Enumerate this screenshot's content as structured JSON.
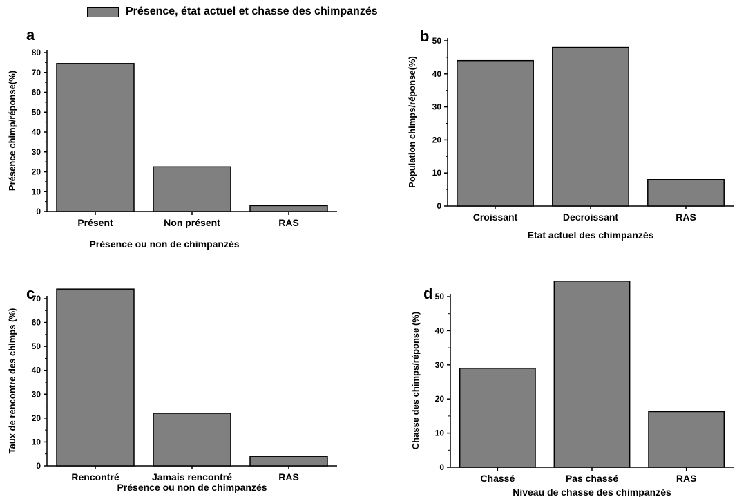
{
  "legend": {
    "label": "Présence, état actuel et chasse des chimpanzés",
    "color": "#808080"
  },
  "chart_data": [
    {
      "type": "bar",
      "panel": "a",
      "categories": [
        "Présent",
        "Non présent",
        "RAS"
      ],
      "values": [
        74.5,
        22.5,
        3
      ],
      "xlabel": "Présence ou non de chimpanzés",
      "ylabel": "Présence chimp/réponse(%)",
      "ylim": [
        0,
        80
      ],
      "yticks": [
        0,
        10,
        20,
        30,
        40,
        50,
        60,
        70,
        80
      ],
      "bar_color": "#808080",
      "grid": false
    },
    {
      "type": "bar",
      "panel": "b",
      "categories": [
        "Croissant",
        "Decroissant",
        "RAS"
      ],
      "values": [
        44,
        48,
        8
      ],
      "xlabel": "Etat actuel des chimpanzés",
      "ylabel": "Population chimps/réponse(%)",
      "ylim": [
        0,
        50
      ],
      "yticks": [
        0,
        10,
        20,
        30,
        40,
        50
      ],
      "bar_color": "#808080",
      "grid": false
    },
    {
      "type": "bar",
      "panel": "c",
      "categories": [
        "Rencontré",
        "Jamais rencontré",
        "RAS"
      ],
      "values": [
        74,
        22,
        4
      ],
      "xlabel": "Présence ou non de chimpanzés",
      "ylabel": "Taux de rencontre des chimps (%)",
      "ylim": [
        0,
        70
      ],
      "yticks": [
        0,
        10,
        20,
        30,
        40,
        50,
        60,
        70
      ],
      "bar_color": "#808080",
      "grid": false
    },
    {
      "type": "bar",
      "panel": "d",
      "categories": [
        "Chassé",
        "Pas chassé",
        "RAS"
      ],
      "values": [
        29,
        54.5,
        16.3
      ],
      "xlabel": "Niveau de chasse des chimpanzés",
      "ylabel": "Chasse des chimps/réponse (%)",
      "ylim": [
        0,
        50
      ],
      "yticks": [
        0,
        10,
        20,
        30,
        40,
        50
      ],
      "bar_color": "#808080",
      "grid": false
    }
  ]
}
